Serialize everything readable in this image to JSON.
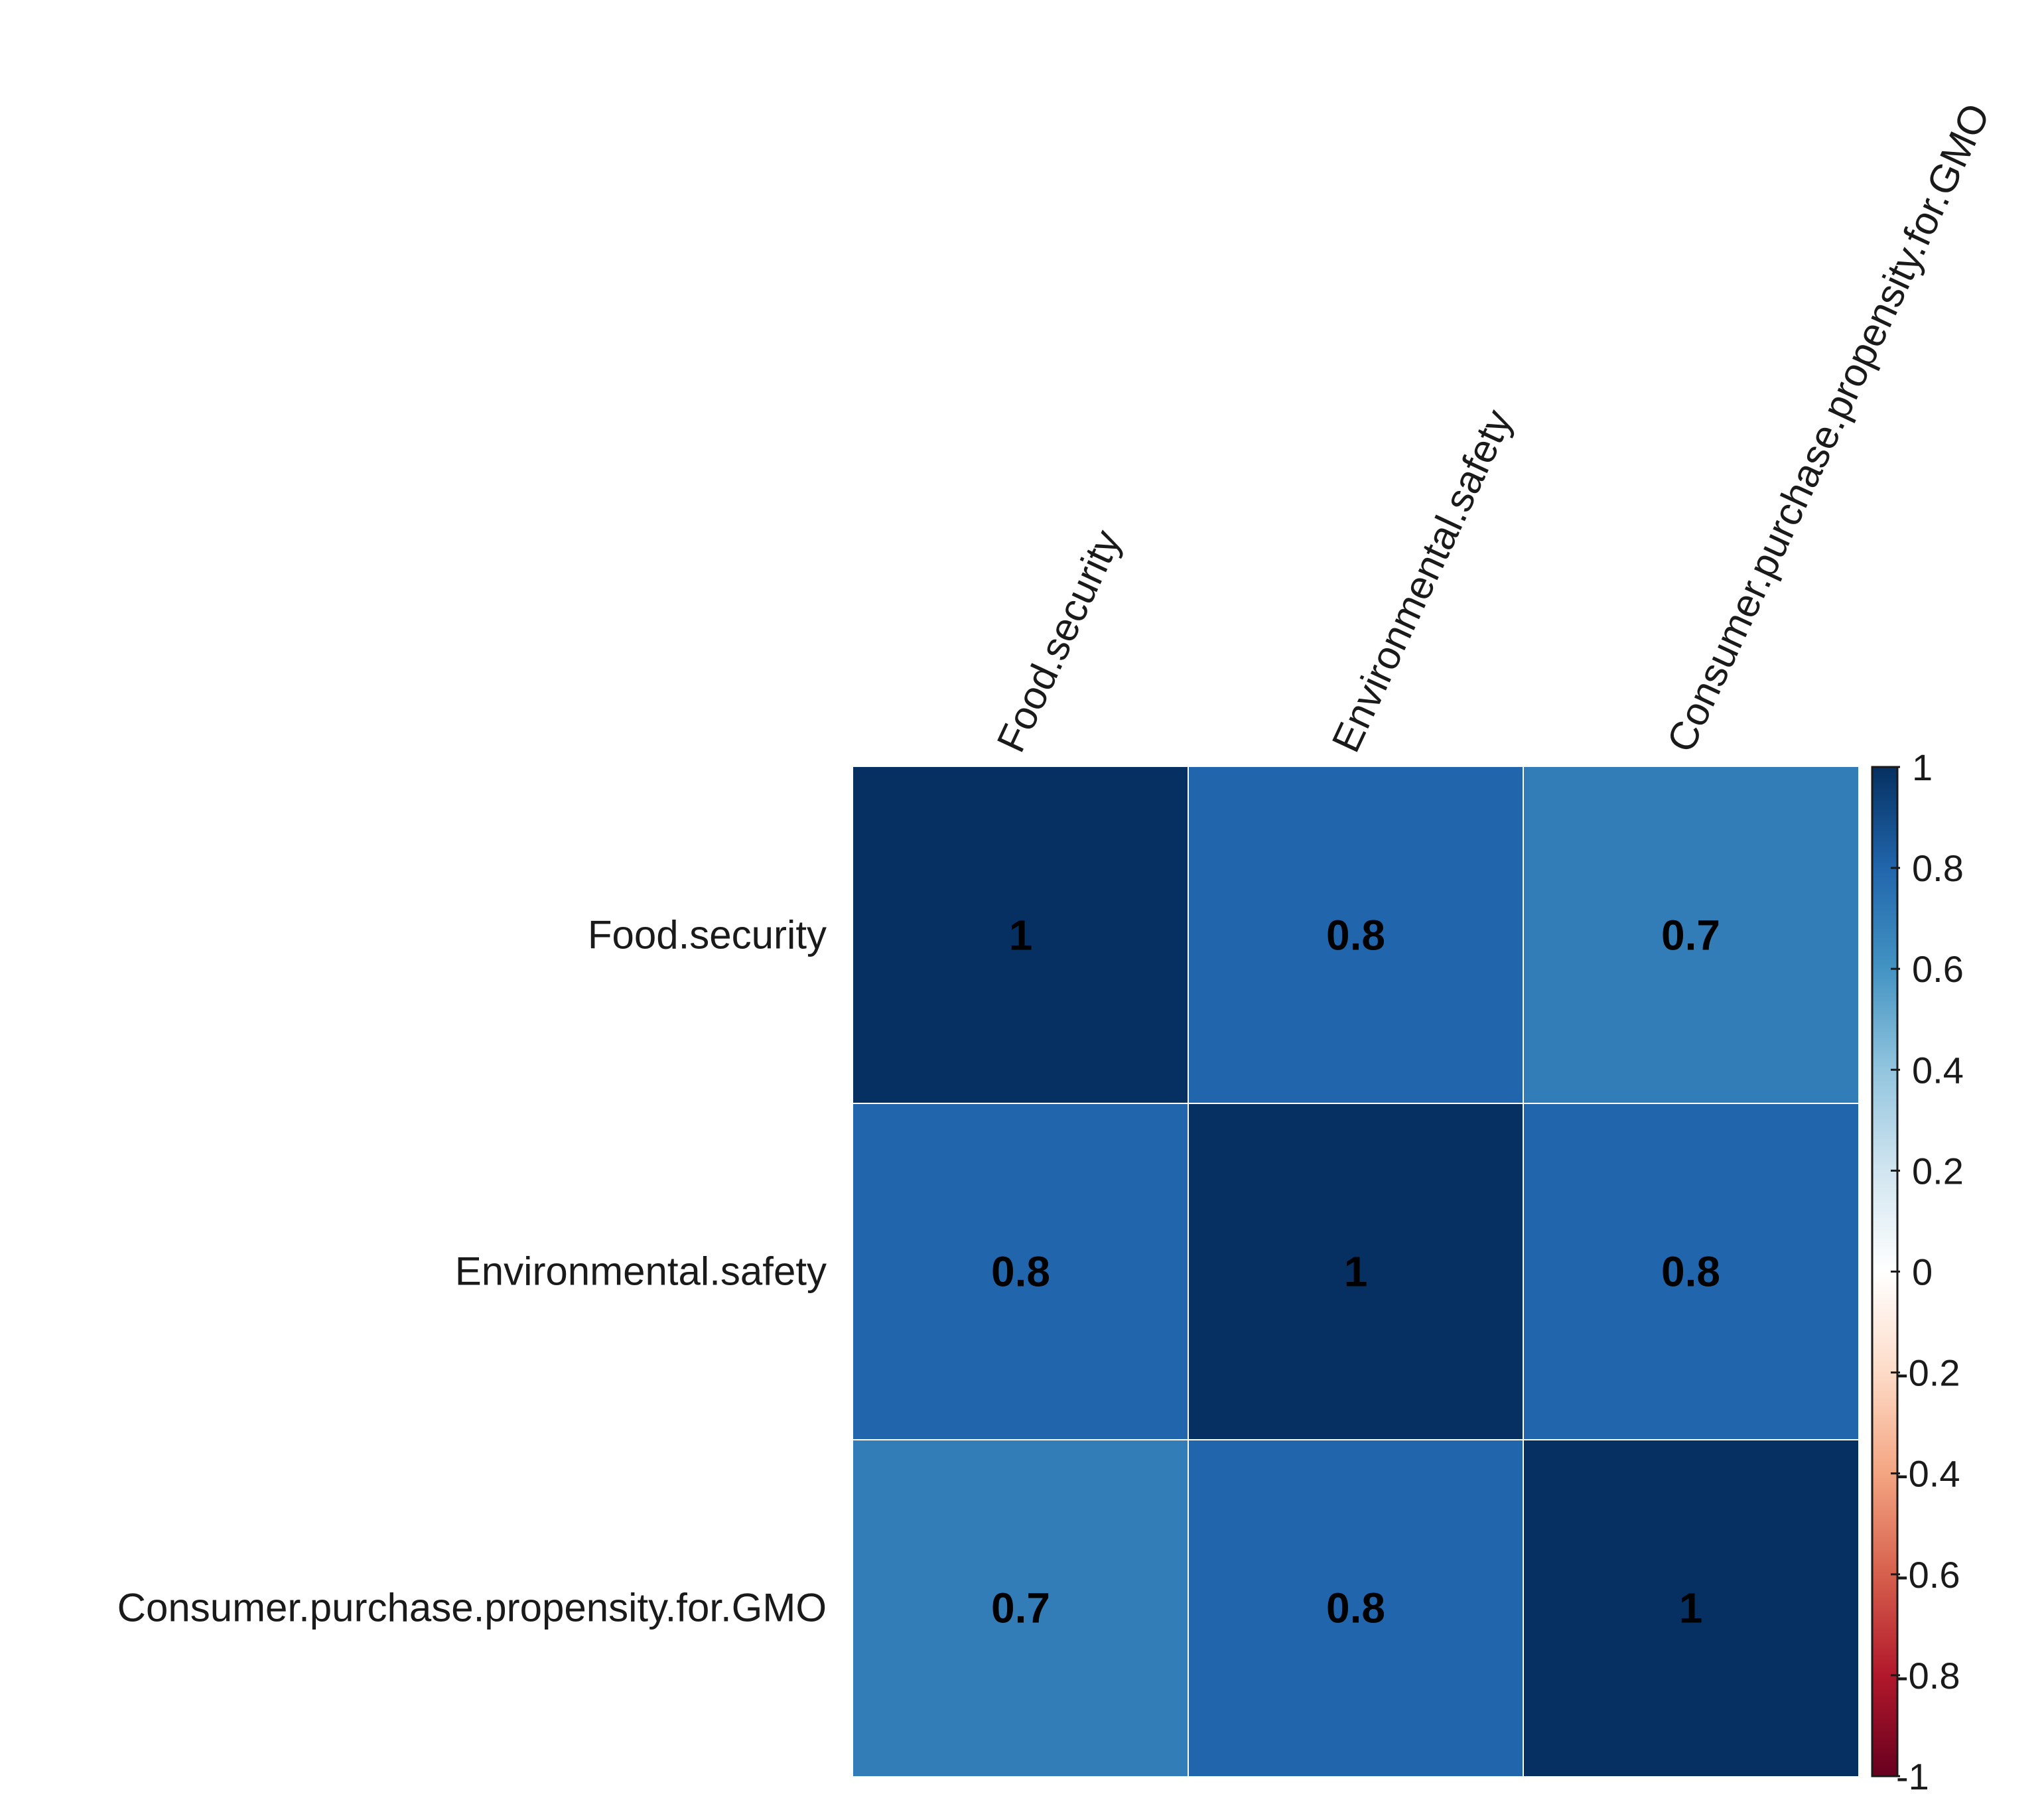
{
  "chart_data": {
    "type": "heatmap",
    "title": "",
    "variables": [
      "Food.security",
      "Environmental.safety",
      "Consumer.purchase.propensity.for.GMO"
    ],
    "matrix": [
      [
        1,
        0.8,
        0.7
      ],
      [
        0.8,
        1,
        0.8
      ],
      [
        0.7,
        0.8,
        1
      ]
    ],
    "cell_labels": [
      [
        "1",
        "0.8",
        "0.7"
      ],
      [
        "0.8",
        "1",
        "0.8"
      ],
      [
        "0.7",
        "0.8",
        "1"
      ]
    ],
    "colorbar": {
      "range": [
        -1,
        1
      ],
      "tick_labels": [
        "1",
        "0.8",
        "0.6",
        "0.4",
        "0.2",
        "0",
        "-0.2",
        "-0.4",
        "-0.6",
        "-0.8",
        "-1"
      ],
      "tick_values": [
        1,
        0.8,
        0.6,
        0.4,
        0.2,
        0,
        -0.2,
        -0.4,
        -0.6,
        -0.8,
        -1
      ],
      "colors": [
        "#67001F",
        "#B2182B",
        "#D6604D",
        "#F4A582",
        "#FDDBC7",
        "#FFFFFF",
        "#D1E5F0",
        "#92C5DE",
        "#4393C3",
        "#2166AC",
        "#053061"
      ],
      "placement": "right"
    }
  }
}
